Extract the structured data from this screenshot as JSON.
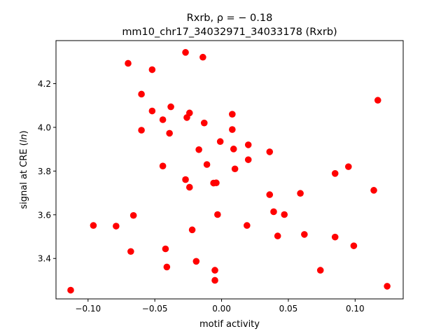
{
  "chart_data": {
    "type": "scatter",
    "title_line1": "Rxrb, ρ = − 0.18",
    "title_line2": "mm10_chr17_34032971_34033178 (Rxrb)",
    "xlabel": "motif activity",
    "ylabel_prefix": "signal at CRE (",
    "ylabel_italic": "ln",
    "ylabel_suffix": ")",
    "xlim": [
      -0.124,
      0.136
    ],
    "ylim": [
      3.215,
      4.397
    ],
    "xticks": [
      -0.1,
      -0.05,
      0.0,
      0.05,
      0.1
    ],
    "xtick_labels": [
      "−0.10",
      "−0.05",
      "0.00",
      "0.05",
      "0.10"
    ],
    "yticks": [
      3.4,
      3.6,
      3.8,
      4.0,
      4.2
    ],
    "ytick_labels": [
      "3.4",
      "3.6",
      "3.8",
      "4.0",
      "4.2"
    ],
    "marker_color": "#ff0000",
    "points": [
      {
        "x": -0.113,
        "y": 3.255
      },
      {
        "x": -0.096,
        "y": 3.551
      },
      {
        "x": -0.079,
        "y": 3.548
      },
      {
        "x": -0.07,
        "y": 4.293
      },
      {
        "x": -0.068,
        "y": 3.432
      },
      {
        "x": -0.066,
        "y": 3.597
      },
      {
        "x": -0.06,
        "y": 4.152
      },
      {
        "x": -0.06,
        "y": 3.987
      },
      {
        "x": -0.052,
        "y": 4.264
      },
      {
        "x": -0.052,
        "y": 4.075
      },
      {
        "x": -0.044,
        "y": 4.035
      },
      {
        "x": -0.044,
        "y": 3.823
      },
      {
        "x": -0.042,
        "y": 3.444
      },
      {
        "x": -0.041,
        "y": 3.361
      },
      {
        "x": -0.039,
        "y": 3.973
      },
      {
        "x": -0.038,
        "y": 4.094
      },
      {
        "x": -0.027,
        "y": 4.343
      },
      {
        "x": -0.027,
        "y": 3.761
      },
      {
        "x": -0.026,
        "y": 4.045
      },
      {
        "x": -0.024,
        "y": 4.066
      },
      {
        "x": -0.024,
        "y": 3.726
      },
      {
        "x": -0.022,
        "y": 3.531
      },
      {
        "x": -0.019,
        "y": 3.387
      },
      {
        "x": -0.017,
        "y": 3.898
      },
      {
        "x": -0.014,
        "y": 4.321
      },
      {
        "x": -0.013,
        "y": 4.02
      },
      {
        "x": -0.011,
        "y": 3.83
      },
      {
        "x": -0.006,
        "y": 3.745
      },
      {
        "x": -0.005,
        "y": 3.346
      },
      {
        "x": -0.005,
        "y": 3.3
      },
      {
        "x": -0.004,
        "y": 3.746
      },
      {
        "x": -0.003,
        "y": 3.601
      },
      {
        "x": -0.001,
        "y": 3.935
      },
      {
        "x": 0.008,
        "y": 4.06
      },
      {
        "x": 0.008,
        "y": 3.99
      },
      {
        "x": 0.009,
        "y": 3.901
      },
      {
        "x": 0.01,
        "y": 3.81
      },
      {
        "x": 0.019,
        "y": 3.551
      },
      {
        "x": 0.02,
        "y": 3.92
      },
      {
        "x": 0.02,
        "y": 3.852
      },
      {
        "x": 0.036,
        "y": 3.888
      },
      {
        "x": 0.036,
        "y": 3.692
      },
      {
        "x": 0.039,
        "y": 3.614
      },
      {
        "x": 0.042,
        "y": 3.503
      },
      {
        "x": 0.047,
        "y": 3.601
      },
      {
        "x": 0.059,
        "y": 3.698
      },
      {
        "x": 0.062,
        "y": 3.51
      },
      {
        "x": 0.074,
        "y": 3.346
      },
      {
        "x": 0.085,
        "y": 3.789
      },
      {
        "x": 0.085,
        "y": 3.498
      },
      {
        "x": 0.095,
        "y": 3.82
      },
      {
        "x": 0.099,
        "y": 3.458
      },
      {
        "x": 0.114,
        "y": 3.712
      },
      {
        "x": 0.117,
        "y": 4.124
      },
      {
        "x": 0.124,
        "y": 3.273
      }
    ]
  }
}
